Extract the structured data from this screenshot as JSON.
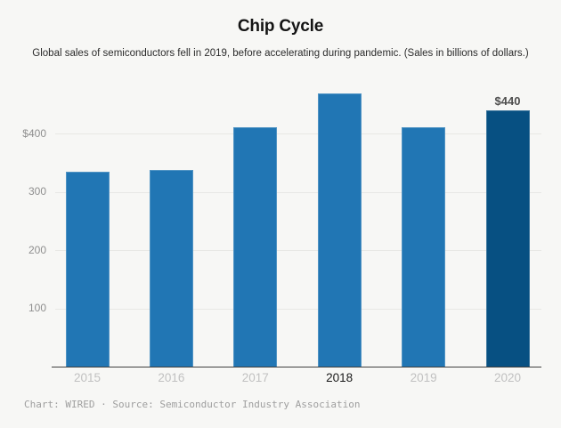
{
  "chart_data": {
    "type": "bar",
    "title": "Chip Cycle",
    "subtitle": "Global sales of semiconductors fell in 2019, before accelerating during pandemic. (Sales in billions of dollars.)",
    "categories": [
      "2015",
      "2016",
      "2017",
      "2018",
      "2019",
      "2020"
    ],
    "values": [
      335,
      339,
      412,
      469,
      412,
      440
    ],
    "xlabel": "",
    "ylabel": "",
    "ylim": [
      0,
      480
    ],
    "yticks": [
      100,
      200,
      300,
      400
    ],
    "ytick_labels": [
      "100",
      "200",
      "300",
      "$400"
    ],
    "grid": true,
    "legend": false,
    "bar_color": "#2176b4",
    "highlight": {
      "category": "2020",
      "label": "$440",
      "color": "#075082"
    },
    "emphasized_x_label": "2018"
  },
  "footer": {
    "attribution": "Chart: WIRED · Source: Semiconductor Industry Association"
  }
}
